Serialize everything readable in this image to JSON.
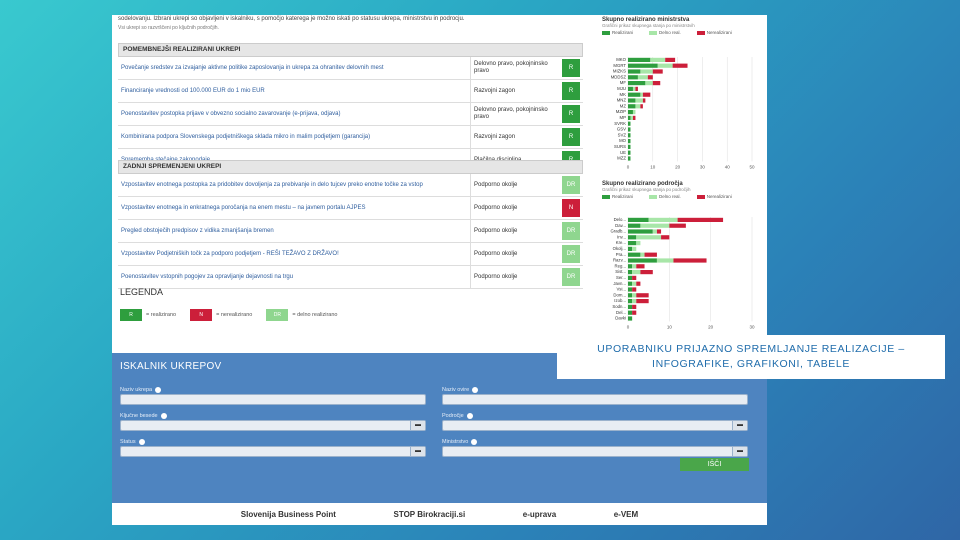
{
  "intro": {
    "line1": "sodelovanju. Izbrani ukrepi so objavljeni v iskalniku, s pomočjo katerega je možno iskati po statusu ukrepa, ministrstvu in podrocju.",
    "line2": "Vsi ukrepi so razvrščeni po ključnih področjih."
  },
  "sections": [
    {
      "title": "POMEMBNEJŠI REALIZIRANI UKREPI",
      "rows": [
        {
          "text": "Povečanje sredstev za izvajanje aktivne politike zaposlovanja in ukrepa za ohranitev delovnih mest",
          "cat": "Delovno pravo, pokojninsko pravo",
          "status": "R",
          "color": "#2e9e3e"
        },
        {
          "text": "Financiranje vrednosti od 100.000 EUR do 1 mio EUR",
          "cat": "Razvojni zagon",
          "status": "R",
          "color": "#2e9e3e"
        },
        {
          "text": "Poenostavitev postopka prijave v obvezno socialno zavarovanje (e-prijava, odjava)",
          "cat": "Delovno pravo, pokojninsko pravo",
          "status": "R",
          "color": "#2e9e3e"
        },
        {
          "text": "Kombinirana podpora Slovenskega podjetniškega sklada mikro in malim podjetjem (garancija)",
          "cat": "Razvojni zagon",
          "status": "R",
          "color": "#2e9e3e"
        },
        {
          "text": "Sprememba stečajne zakonodaje",
          "cat": "Plačilna disciplina",
          "status": "R",
          "color": "#2e9e3e"
        }
      ]
    },
    {
      "title": "ZADNJI SPREMENJENI UKREPI",
      "rows": [
        {
          "text": "Vzpostavitev enotnega postopka za pridobitev dovoljenja za prebivanje in delo tujcev preko enotne točke za vstop",
          "cat": "Podporno okolje",
          "status": "DR",
          "color": "#8fd68f"
        },
        {
          "text": "Vzpostavitev enotnega in enkratnega poročanja na enem mestu – na javnem portalu AJPES",
          "cat": "Podporno okolje",
          "status": "N",
          "color": "#cc1f3a"
        },
        {
          "text": "Pregled obstoječih predpisov z vidika zmanjšanja bremen",
          "cat": "Podporno okolje",
          "status": "DR",
          "color": "#8fd68f"
        },
        {
          "text": "Vzpostavitev Podjetniških točk za podporo podjetjem - REŠI TEŽAVO Z DRŽAVO!",
          "cat": "Podporno okolje",
          "status": "DR",
          "color": "#8fd68f"
        },
        {
          "text": "Poenostavitev vstopnih pogojev za opravljanje dejavnosti na trgu",
          "cat": "Podporno okolje",
          "status": "DR",
          "color": "#8fd68f"
        }
      ]
    }
  ],
  "legend": {
    "title": "LEGENDA",
    "items": [
      {
        "code": "R",
        "label": "= realizirano",
        "color": "#2e9e3e"
      },
      {
        "code": "N",
        "label": "= nerealizirano",
        "color": "#cc1f3a"
      },
      {
        "code": "DR",
        "label": "= delno realizirano",
        "color": "#8fd68f"
      }
    ]
  },
  "charts": [
    {
      "title": "Skupno realizirano ministrstva",
      "subtitle": "Grafični prikaz skupnega stanja po ministrstvih",
      "legend": [
        "Realizirani",
        "Delno real.",
        "Nerealizirani"
      ],
      "categories": [
        "MKO",
        "MGRT",
        "MIZKS",
        "MDDSZ",
        "MF",
        "MJU",
        "MK",
        "MNZ",
        "MZ",
        "MZIP",
        "MP",
        "SVRK",
        "GSV",
        "SVZ",
        "MO",
        "SURS",
        "UE",
        "MZZ"
      ],
      "series": [
        {
          "name": "Realizirani",
          "color": "#2e9e3e",
          "values": [
            9,
            12,
            5,
            4,
            7,
            2,
            5,
            3,
            3,
            2,
            1,
            1,
            1,
            1,
            1,
            1,
            1,
            1
          ]
        },
        {
          "name": "Delno real.",
          "color": "#a8e6a8",
          "values": [
            6,
            6,
            5,
            4,
            3,
            1,
            1,
            3,
            2,
            1,
            1,
            0,
            0,
            0,
            0,
            0,
            0,
            0
          ]
        },
        {
          "name": "Nerealizirani",
          "color": "#cc1f3a",
          "values": [
            4,
            6,
            4,
            2,
            3,
            1,
            3,
            1,
            1,
            0,
            1,
            0,
            0,
            0,
            0,
            0,
            0,
            0
          ]
        }
      ],
      "xticks": [
        "0",
        "10",
        "20",
        "30",
        "40",
        "50"
      ],
      "xmax": 50
    },
    {
      "title": "Skupno realizirano področja",
      "subtitle": "Grafični prikaz skupnega stanja po področjih",
      "legend": [
        "Realizirani",
        "Delno real.",
        "Nerealizirani"
      ],
      "categories": [
        "Delo...",
        "Dav...",
        "Gradb...",
        "Inv...",
        "Kre...",
        "Okolj...",
        "Pra...",
        "Razv...",
        "Reg...",
        "Sist...",
        "Ser...",
        "Javn...",
        "Vsi...",
        "Dom...",
        "Izob...",
        "Sodn...",
        "Del...",
        "Davki"
      ],
      "series": [
        {
          "name": "Realizirani",
          "color": "#2e9e3e",
          "values": [
            5,
            3,
            6,
            2,
            2,
            1,
            3,
            7,
            1,
            1,
            1,
            1,
            1,
            1,
            1,
            1,
            1,
            1
          ]
        },
        {
          "name": "Delno real.",
          "color": "#a8e6a8",
          "values": [
            7,
            7,
            1,
            6,
            1,
            1,
            1,
            4,
            1,
            2,
            0,
            1,
            0,
            1,
            1,
            0,
            0,
            0
          ]
        },
        {
          "name": "Nerealizirani",
          "color": "#cc1f3a",
          "values": [
            11,
            4,
            1,
            2,
            0,
            0,
            3,
            8,
            2,
            3,
            1,
            1,
            1,
            3,
            3,
            1,
            1,
            0
          ]
        }
      ],
      "xticks": [
        "0",
        "10",
        "20",
        "30"
      ],
      "xmax": 30
    }
  ],
  "search": {
    "title": "ISKALNIK UKREPOV",
    "fields": [
      {
        "label": "Naziv ukrepa",
        "has_button": false
      },
      {
        "label": "Naziv ovire",
        "has_button": false
      },
      {
        "label": "Ključne besede",
        "has_button": true
      },
      {
        "label": "Področje",
        "has_button": true
      },
      {
        "label": "Status",
        "has_button": true
      },
      {
        "label": "Ministrstvo",
        "has_button": true
      }
    ],
    "button": "IŠČI"
  },
  "footer": {
    "logos": [
      "Slovenija Business Point",
      "STOP Birokraciji.si",
      "e-uprava",
      "e-VEM"
    ]
  },
  "banner": {
    "line1": "UPORABNIKU PRIJAZNO SPREMLJANJE REALIZACIJE –",
    "line2": "INFOGRAFIKE, GRAFIKONI, TABELE"
  }
}
